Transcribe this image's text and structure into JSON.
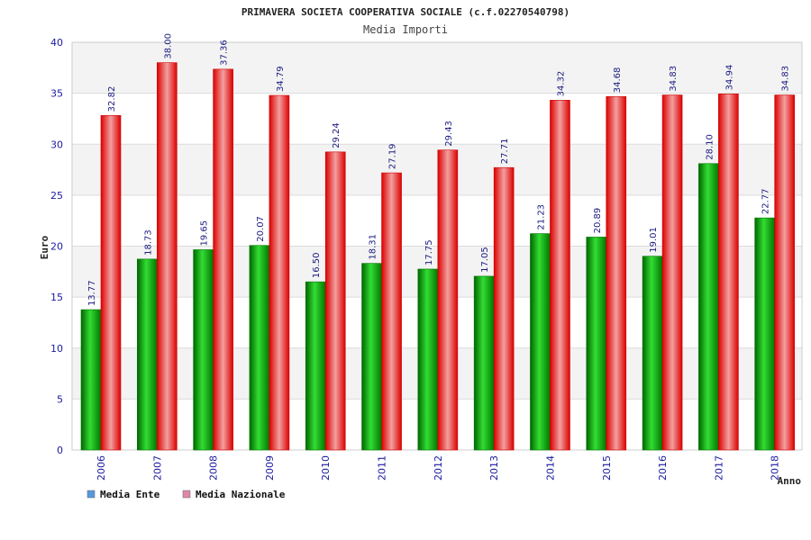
{
  "chart_data": {
    "type": "bar",
    "title": "PRIMAVERA SOCIETA COOPERATIVA SOCIALE (c.f.02270540798)",
    "subtitle": "Media Importi",
    "xlabel": "Anno",
    "ylabel": "Euro",
    "ylim": [
      0,
      40
    ],
    "yticks": [
      0,
      5,
      10,
      15,
      20,
      25,
      30,
      35,
      40
    ],
    "grid": true,
    "legend_position": "bottom-left",
    "categories": [
      "2006",
      "2007",
      "2008",
      "2009",
      "2010",
      "2011",
      "2012",
      "2013",
      "2014",
      "2015",
      "2016",
      "2017",
      "2018"
    ],
    "series": [
      {
        "name": "Media Ente",
        "color": "#00aa00",
        "legend_color": "#5599dd",
        "values": [
          13.77,
          18.73,
          19.65,
          20.07,
          16.5,
          18.31,
          17.75,
          17.05,
          21.23,
          20.89,
          19.01,
          28.1,
          22.77
        ],
        "labels": [
          "13.77",
          "18.73",
          "19.65",
          "20.07",
          "16.50",
          "18.31",
          "17.75",
          "17.05",
          "21.23",
          "20.89",
          "19.01",
          "28.10",
          "22.77"
        ]
      },
      {
        "name": "Media Nazionale",
        "color": "#ee1111",
        "legend_color": "#dd88aa",
        "values": [
          32.82,
          38.0,
          37.36,
          34.79,
          29.24,
          27.19,
          29.43,
          27.71,
          34.32,
          34.68,
          34.83,
          34.94,
          34.83
        ],
        "labels": [
          "32.82",
          "38.00",
          "37.36",
          "34.79",
          "29.24",
          "27.19",
          "29.43",
          "27.71",
          "34.32",
          "34.68",
          "34.83",
          "34.94",
          "34.83"
        ]
      }
    ]
  }
}
